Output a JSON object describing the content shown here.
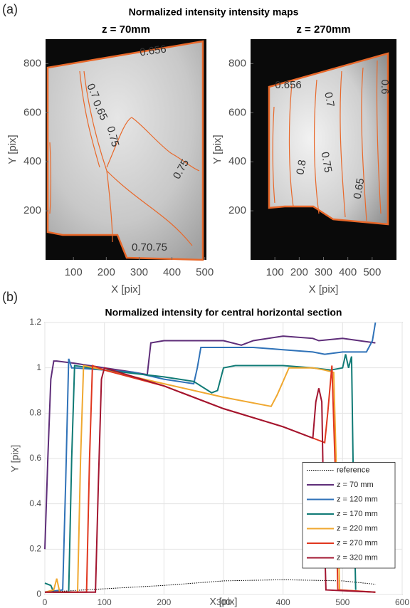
{
  "panel_labels": [
    "(a)",
    "(b)"
  ],
  "suptitle": "Normalized intensity intensity maps",
  "chart_data": [
    {
      "type": "image",
      "title": "z = 70mm",
      "xlabel": "X [pix]",
      "ylabel": "Y [pix]",
      "xlim": [
        15,
        505
      ],
      "ylim": [
        0,
        900
      ],
      "xticks": [
        100,
        200,
        300,
        400,
        500
      ],
      "yticks": [
        200,
        400,
        600,
        800
      ],
      "contour_color": "#e8682a",
      "annotations": [
        "0.656",
        "0.7",
        "0.65",
        "0.75",
        "0.75",
        "0.70.75"
      ]
    },
    {
      "type": "image",
      "title": "z = 270mm",
      "xlabel": "X [pix]",
      "ylabel": "Y [pix]",
      "xlim": [
        0,
        600
      ],
      "ylim": [
        0,
        900
      ],
      "xticks": [
        100,
        200,
        300,
        400,
        500
      ],
      "yticks": [
        200,
        400,
        600,
        800
      ],
      "contour_color": "#e8682a",
      "annotations": [
        "0.656",
        "0.7",
        "0.75",
        "0.8",
        "0.65",
        "0.6"
      ]
    },
    {
      "type": "line",
      "title": "Normalized intensity for central horizontal section",
      "xlabel": "X [pix]",
      "ylabel": "Y [pix]",
      "xlim": [
        0,
        600
      ],
      "ylim": [
        0,
        1.2
      ],
      "xticks": [
        0,
        100,
        200,
        300,
        400,
        500,
        600
      ],
      "yticks": [
        0,
        0.2,
        0.4,
        0.6,
        0.8,
        1,
        1.2
      ],
      "grid": true,
      "legend": "lower right",
      "series": [
        {
          "name": "reference",
          "color": "#000000",
          "style": "dotted",
          "x": [
            0,
            100,
            200,
            300,
            400,
            500,
            555
          ],
          "values": [
            0.01,
            0.025,
            0.04,
            0.06,
            0.065,
            0.06,
            0.045
          ]
        },
        {
          "name": "z = 70 mm",
          "color": "#5e2d79",
          "x": [
            0,
            5,
            10,
            15,
            20,
            50,
            100,
            150,
            172,
            178,
            200,
            250,
            300,
            330,
            350,
            400,
            450,
            460,
            500,
            555
          ],
          "values": [
            0.2,
            0.6,
            0.95,
            1.03,
            1.03,
            1.02,
            1.0,
            0.98,
            0.97,
            1.11,
            1.12,
            1.12,
            1.12,
            1.1,
            1.12,
            1.14,
            1.13,
            1.12,
            1.13,
            1.11
          ]
        },
        {
          "name": "z = 120 mm",
          "color": "#2f72b8",
          "x": [
            0,
            30,
            35,
            40,
            45,
            50,
            100,
            150,
            200,
            250,
            256,
            262,
            300,
            350,
            400,
            450,
            470,
            500,
            540,
            550,
            555
          ],
          "values": [
            0.01,
            0.02,
            0.5,
            1.04,
            1.0,
            1.0,
            0.99,
            0.98,
            0.95,
            0.93,
            1.0,
            1.09,
            1.09,
            1.09,
            1.08,
            1.07,
            1.06,
            1.07,
            1.07,
            1.12,
            1.2
          ]
        },
        {
          "name": "z = 170 mm",
          "color": "#0f7a75",
          "x": [
            0,
            10,
            15,
            40,
            45,
            50,
            100,
            200,
            250,
            280,
            290,
            300,
            320,
            400,
            450,
            480,
            500,
            505,
            510,
            515,
            518,
            522
          ],
          "values": [
            0.05,
            0.04,
            0.01,
            0.01,
            0.6,
            1.01,
            0.99,
            0.96,
            0.94,
            0.89,
            0.9,
            1.0,
            1.01,
            1.01,
            1.0,
            0.99,
            1.0,
            1.06,
            1.0,
            1.05,
            0.5,
            0.02
          ]
        },
        {
          "name": "z = 220 mm",
          "color": "#f0a830",
          "x": [
            0,
            15,
            20,
            25,
            55,
            60,
            65,
            100,
            200,
            300,
            380,
            390,
            410,
            450,
            470,
            485,
            490,
            495,
            555
          ],
          "values": [
            0.01,
            0.02,
            0.07,
            0.01,
            0.01,
            0.6,
            1.01,
            0.99,
            0.93,
            0.87,
            0.83,
            0.88,
            1.0,
            1.0,
            0.99,
            0.98,
            0.5,
            0.02,
            0.01
          ]
        },
        {
          "name": "z = 270 mm",
          "color": "#e0371f",
          "x": [
            0,
            70,
            75,
            80,
            100,
            200,
            300,
            400,
            460,
            470,
            475,
            482,
            487,
            492,
            555
          ],
          "values": [
            0.01,
            0.01,
            0.6,
            1.01,
            0.99,
            0.92,
            0.82,
            0.74,
            0.68,
            0.67,
            0.8,
            1.01,
            0.6,
            0.02,
            0.01
          ]
        },
        {
          "name": "z = 320 mm",
          "color": "#a2142f",
          "x": [
            0,
            85,
            90,
            95,
            100,
            200,
            300,
            400,
            450,
            455,
            460,
            465,
            468,
            472,
            555
          ],
          "values": [
            0.01,
            0.01,
            0.5,
            0.95,
            1.0,
            0.92,
            0.82,
            0.74,
            0.69,
            0.85,
            0.91,
            0.85,
            0.4,
            0.02,
            0.01
          ]
        }
      ]
    }
  ]
}
